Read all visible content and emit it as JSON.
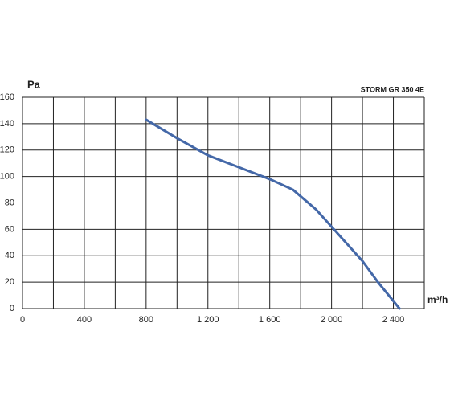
{
  "chart_data": {
    "type": "line",
    "title": "STORM GR 350 4E",
    "y_label": "Pa",
    "x_label": "m³/h",
    "x": [
      800,
      1000,
      1200,
      1400,
      1600,
      1750,
      1900,
      2000,
      2200,
      2300,
      2440
    ],
    "series": [
      {
        "name": "STORM GR 350 4E",
        "color": "#4468a8",
        "values": [
          143,
          129,
          116,
          107,
          98,
          90,
          75,
          62,
          36,
          20,
          0
        ]
      }
    ],
    "xlim": [
      0,
      2600
    ],
    "xticks": [
      0,
      {
        "value": 200,
        "label": null
      },
      400,
      {
        "value": 600,
        "label": null
      },
      800,
      {
        "value": 1000,
        "label": null
      },
      {
        "value": 1200,
        "label": "1 200"
      },
      {
        "value": 1400,
        "label": null
      },
      {
        "value": 1600,
        "label": "1 600"
      },
      {
        "value": 1800,
        "label": null
      },
      {
        "value": 2000,
        "label": "2 000"
      },
      {
        "value": 2200,
        "label": null
      },
      {
        "value": 2400,
        "label": "2 400"
      },
      {
        "value": 2600,
        "label": null
      }
    ],
    "ylim": [
      0,
      160
    ],
    "yticks": [
      0,
      20,
      40,
      60,
      80,
      100,
      120,
      140,
      160
    ],
    "grid": true
  }
}
